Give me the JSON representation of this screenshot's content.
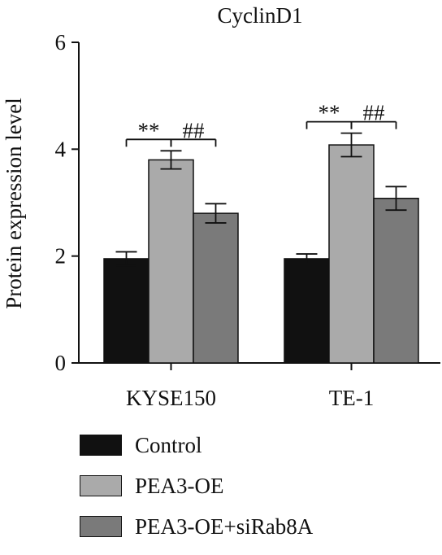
{
  "chart_data": {
    "type": "bar",
    "title": "CyclinD1",
    "xlabel": "",
    "ylabel": "Protein expression level",
    "ylim": [
      0,
      6
    ],
    "yticks": [
      "0",
      "2",
      "4",
      "6"
    ],
    "categories": [
      "KYSE150",
      "TE-1"
    ],
    "series": [
      {
        "name": "Control",
        "values": [
          1.95,
          1.95
        ],
        "errors": [
          0.13,
          0.09
        ],
        "color": "#111111"
      },
      {
        "name": "PEA3-OE",
        "values": [
          3.8,
          4.08
        ],
        "errors": [
          0.17,
          0.22
        ],
        "color": "#aaaaaa"
      },
      {
        "name": "PEA3-OE+siRab8A",
        "values": [
          2.8,
          3.08
        ],
        "errors": [
          0.18,
          0.22
        ],
        "color": "#7a7a7a"
      }
    ],
    "annotations": [
      {
        "category": "KYSE150",
        "from_series": 0,
        "to_series": 1,
        "label": "**"
      },
      {
        "category": "KYSE150",
        "from_series": 1,
        "to_series": 2,
        "label": "##"
      },
      {
        "category": "TE-1",
        "from_series": 0,
        "to_series": 1,
        "label": "**"
      },
      {
        "category": "TE-1",
        "from_series": 1,
        "to_series": 2,
        "label": "##"
      }
    ],
    "grid": false,
    "legend_position": "bottom"
  }
}
